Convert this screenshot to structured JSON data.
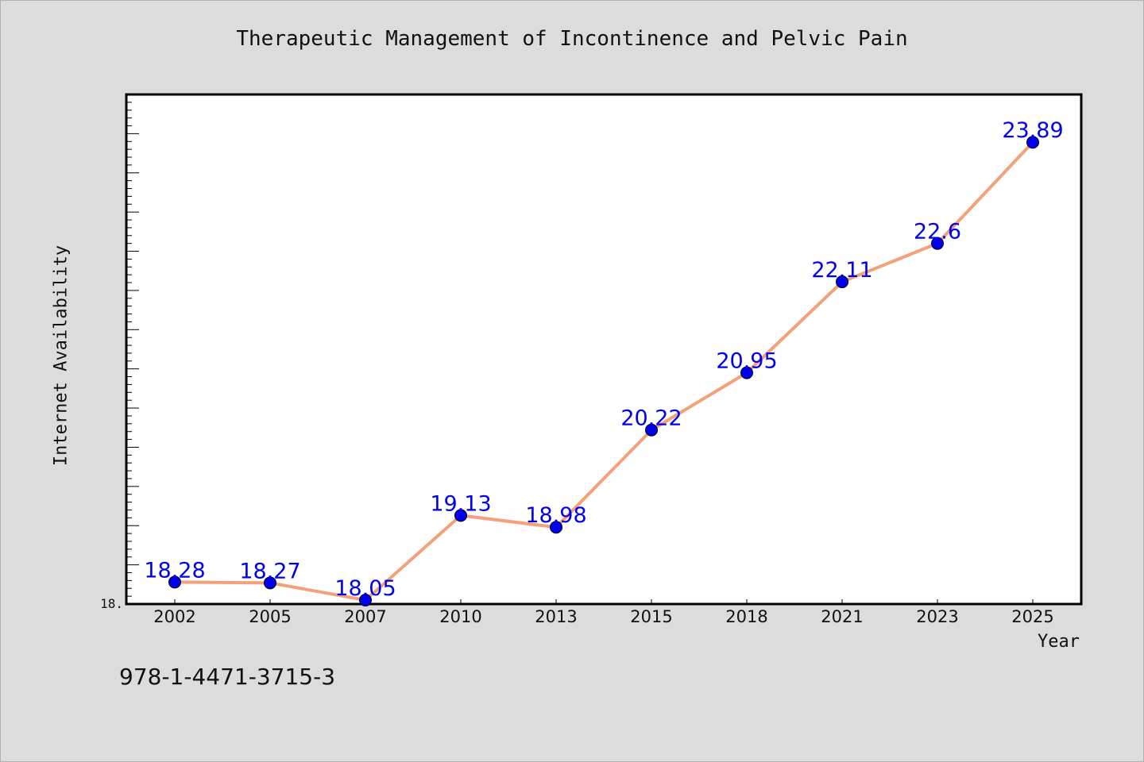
{
  "chart_data": {
    "type": "line",
    "title": "Therapeutic Management of Incontinence and Pelvic Pain",
    "xlabel": "Year",
    "ylabel": "Internet Availability",
    "categories": [
      "2002",
      "2005",
      "2007",
      "2010",
      "2013",
      "2015",
      "2018",
      "2021",
      "2023",
      "2025"
    ],
    "values": [
      18.28,
      18.27,
      18.05,
      19.13,
      18.98,
      20.22,
      20.95,
      22.11,
      22.6,
      23.89
    ],
    "data_labels": [
      "18.28",
      "18.27",
      "18.05",
      "19.13",
      "18.98",
      "20.22",
      "20.95",
      "22.11",
      "22.6",
      "23.89"
    ],
    "y_tick_label": "18.",
    "ylim": [
      18.0,
      24.5
    ],
    "grid": false,
    "line_color": "#f4a07a",
    "marker_color": "#0000ee",
    "label_color": "#0000ee"
  },
  "footer_text": "978-1-4471-3715-3"
}
